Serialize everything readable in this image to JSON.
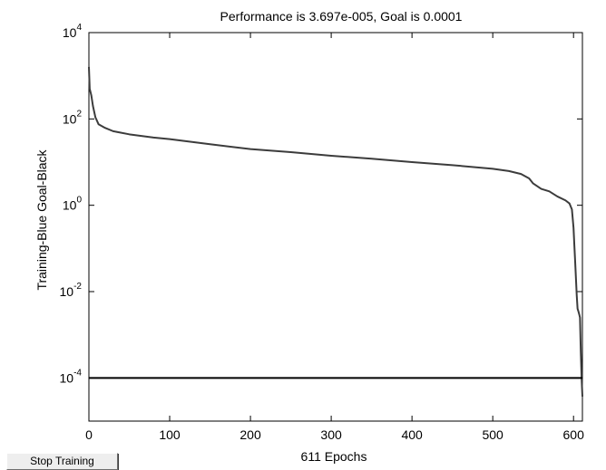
{
  "window": {
    "stop_button_label": "Stop Training"
  },
  "chart_data": {
    "type": "line",
    "title": "Performance is 3.697e-005, Goal is 0.0001",
    "xlabel": "611 Epochs",
    "ylabel": "Training-Blue  Goal-Black",
    "xlim": [
      0,
      611
    ],
    "ylim": [
      1e-05,
      10000
    ],
    "yscale": "log",
    "grid": false,
    "xticks": [
      0,
      100,
      200,
      300,
      400,
      500,
      600
    ],
    "yticks": [
      {
        "value": 0.0001,
        "base": "10",
        "exp": "-4"
      },
      {
        "value": 0.01,
        "base": "10",
        "exp": "-2"
      },
      {
        "value": 1,
        "base": "10",
        "exp": "0"
      },
      {
        "value": 100,
        "base": "10",
        "exp": "2"
      },
      {
        "value": 10000,
        "base": "10",
        "exp": "4"
      }
    ],
    "series": [
      {
        "role": "training",
        "color": "#3c3c3c",
        "x": [
          0,
          1,
          3,
          5,
          8,
          12,
          20,
          30,
          50,
          80,
          100,
          150,
          200,
          250,
          300,
          350,
          400,
          450,
          500,
          520,
          535,
          545,
          550,
          560,
          570,
          580,
          590,
          595,
          598,
          600,
          601,
          602,
          603,
          604,
          605,
          606,
          607,
          608,
          609,
          610,
          611
        ],
        "y": [
          1600,
          500,
          350,
          200,
          110,
          75,
          62,
          52,
          44,
          37,
          34,
          26,
          20,
          17,
          14,
          12,
          10,
          8.5,
          7,
          6.2,
          5.3,
          4.2,
          3.2,
          2.4,
          2.1,
          1.6,
          1.3,
          1.1,
          0.8,
          0.3,
          0.12,
          0.05,
          0.02,
          0.008,
          0.004,
          0.0035,
          0.003,
          0.0025,
          0.0004,
          0.0001,
          3.697e-05
        ]
      },
      {
        "role": "goal",
        "color": "#000000",
        "x": [
          0,
          611
        ],
        "y": [
          0.0001,
          0.0001
        ]
      }
    ]
  }
}
